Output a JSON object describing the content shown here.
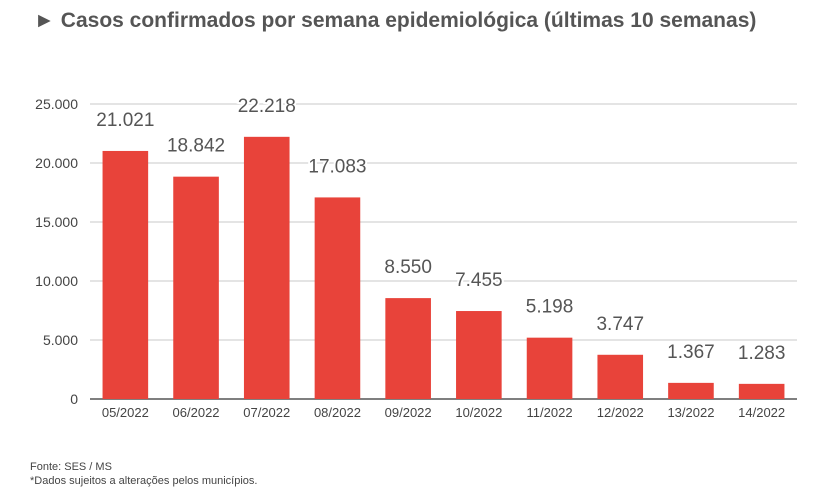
{
  "chart_data": {
    "type": "bar",
    "title_arrow": "►",
    "title": "Casos confirmados por semana epidemiológica (últimas 10 semanas)",
    "categories": [
      "05/2022",
      "06/2022",
      "07/2022",
      "08/2022",
      "09/2022",
      "10/2022",
      "11/2022",
      "12/2022",
      "13/2022",
      "14/2022"
    ],
    "values": [
      21021,
      18842,
      22218,
      17083,
      8550,
      7455,
      5198,
      3747,
      1367,
      1283
    ],
    "value_labels": [
      "21.021",
      "18.842",
      "22.218",
      "17.083",
      "8.550",
      "7.455",
      "5.198",
      "3.747",
      "1.367",
      "1.283"
    ],
    "y_ticks": [
      0,
      5000,
      10000,
      15000,
      20000,
      25000
    ],
    "y_tick_labels": [
      "0",
      "5.000",
      "10.000",
      "15.000",
      "20.000",
      "25.000"
    ],
    "ylim": [
      0,
      25000
    ],
    "grid": true,
    "bar_color": "#e8433a",
    "grid_color": "#c8c8c8"
  },
  "footer": {
    "source": "Fonte: SES / MS",
    "note": "*Dados sujeitos a alterações pelos municípios."
  }
}
